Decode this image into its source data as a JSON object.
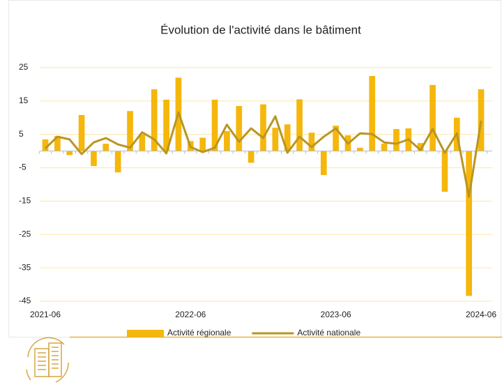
{
  "chart_data": {
    "type": "combo",
    "title": "Évolution de l'activité dans le bâtiment",
    "categories": [
      "2021-06",
      null,
      null,
      null,
      null,
      null,
      null,
      null,
      null,
      null,
      null,
      null,
      "2022-06",
      null,
      null,
      null,
      null,
      null,
      null,
      null,
      null,
      null,
      null,
      null,
      "2023-06",
      null,
      null,
      null,
      null,
      null,
      null,
      null,
      null,
      null,
      null,
      null,
      "2024-06"
    ],
    "series": [
      {
        "name": "Activité régionale",
        "type": "bar",
        "color": "#f5b70c",
        "values": [
          3.5,
          4.5,
          -1.2,
          10.8,
          -4.5,
          2.2,
          -6.4,
          12,
          5,
          18.5,
          15.4,
          22,
          3,
          4,
          15.4,
          6,
          13.5,
          -3.5,
          14,
          7,
          8,
          15.5,
          5.5,
          -7.2,
          7.6,
          4.7,
          1,
          22.5,
          2.2,
          6.6,
          6.8,
          2.4,
          19.8,
          -12.2,
          10,
          -43.4,
          18.5
        ]
      },
      {
        "name": "Activité nationale",
        "type": "line",
        "color": "#b99523",
        "values": [
          0.8,
          4.3,
          3.5,
          -0.9,
          2.6,
          3.9,
          2,
          1,
          5.6,
          3.5,
          -0.7,
          11.6,
          1.2,
          -0.3,
          1,
          7.9,
          2.8,
          6.8,
          3.9,
          10.4,
          -0.5,
          4.3,
          1.2,
          4.3,
          6.8,
          2.2,
          5.3,
          5.1,
          2.6,
          2.2,
          3.5,
          0.3,
          6.6,
          -0.5,
          5.3,
          -13.7,
          9.1
        ]
      }
    ],
    "ylim": [
      -45,
      25
    ],
    "yticks": [
      -45,
      -35,
      -25,
      -15,
      -5,
      5,
      15,
      25
    ],
    "grid": true,
    "legend": "bottom"
  }
}
